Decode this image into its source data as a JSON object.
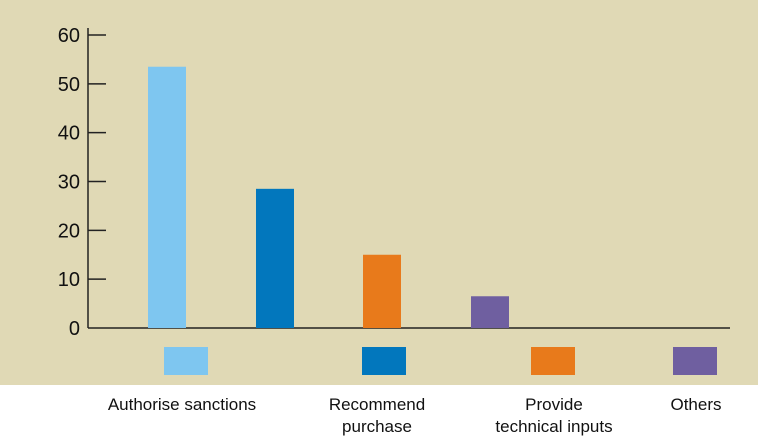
{
  "chart_data": {
    "type": "bar",
    "categories": [
      "Authorise sanctions",
      "Recommend\npurchase",
      "Provide\ntechnical inputs",
      "Others"
    ],
    "values": [
      53.5,
      28.5,
      15,
      6.5
    ],
    "colors": [
      "#7ec6f0",
      "#0277bd",
      "#e87a1b",
      "#6f5fa0"
    ],
    "yticks": [
      0,
      10,
      20,
      30,
      40,
      50,
      60
    ],
    "ylim": [
      0,
      60
    ],
    "title": "",
    "xlabel": "",
    "ylabel": "",
    "grid": false,
    "legend_position": "bottom"
  }
}
